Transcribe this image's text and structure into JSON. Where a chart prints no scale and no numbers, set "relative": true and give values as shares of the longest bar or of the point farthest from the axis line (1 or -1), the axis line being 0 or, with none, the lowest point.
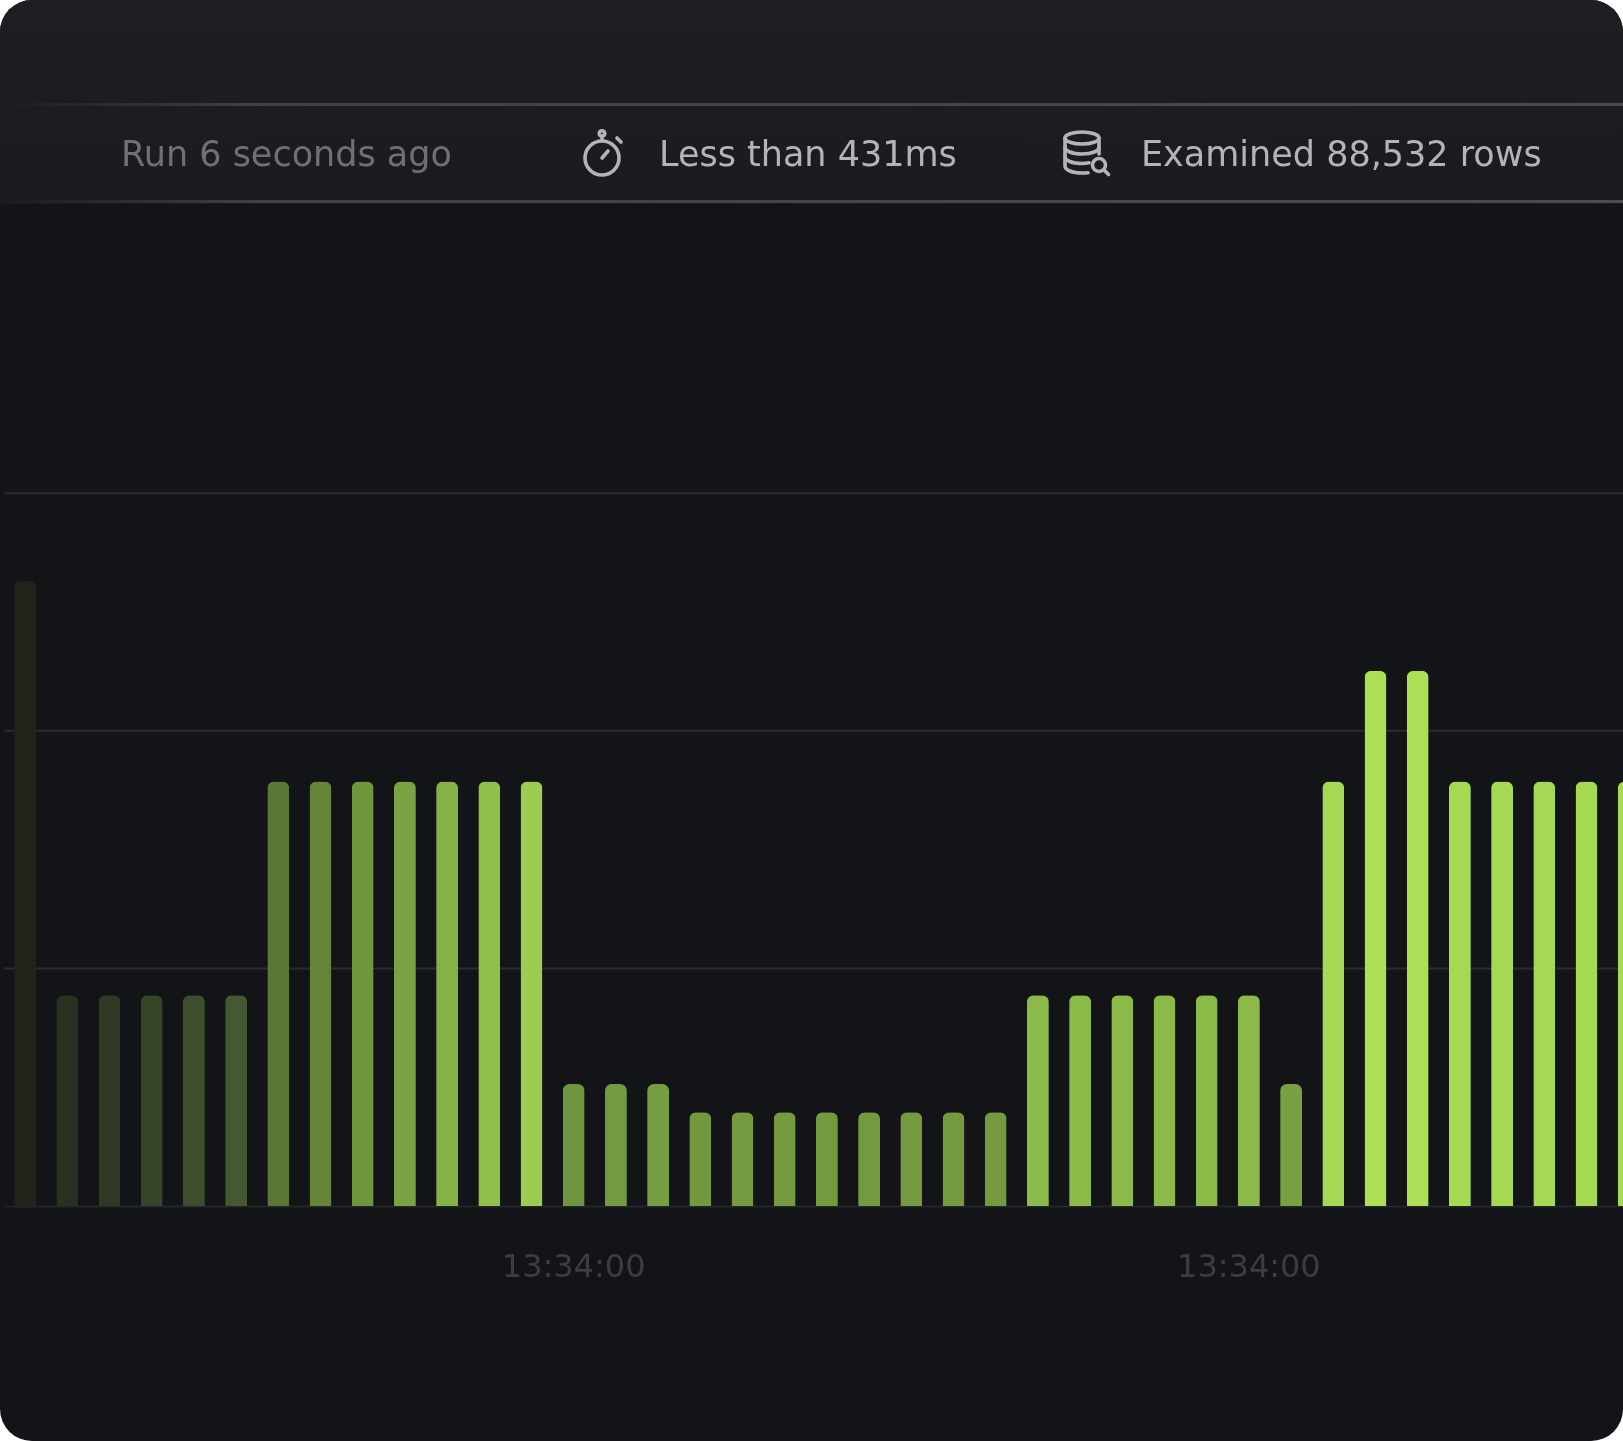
{
  "chart_data": {
    "type": "bar",
    "relative": true,
    "categories": [
      null,
      null,
      null,
      null,
      null,
      null,
      null,
      null,
      null,
      null,
      null,
      null,
      null,
      "13:34:00",
      null,
      null,
      null,
      null,
      null,
      null,
      null,
      null,
      null,
      null,
      null,
      null,
      null,
      null,
      null,
      "13:34:00",
      null,
      null,
      null,
      null,
      null,
      null,
      null,
      null,
      null
    ],
    "values": [
      1,
      0.337,
      0.337,
      0.337,
      0.337,
      0.337,
      0.679,
      0.679,
      0.679,
      0.679,
      0.679,
      0.679,
      0.679,
      0.195,
      0.195,
      0.195,
      0.15,
      0.15,
      0.15,
      0.15,
      0.15,
      0.15,
      0.15,
      0.15,
      0.337,
      0.337,
      0.337,
      0.337,
      0.337,
      0.337,
      0.195,
      0.679,
      0.856,
      0.856,
      0.679,
      0.679,
      0.679,
      0.679,
      0.679
    ],
    "colors": [
      "#1f231a",
      "#283020",
      "#2f3a24",
      "#364428",
      "#3c4e2b",
      "#44592f",
      "#5a7734",
      "#648538",
      "#6f953d",
      "#7aa442",
      "#85b246",
      "#90c04a",
      "#9ccd4f",
      "#6f9540",
      "#729a40",
      "#759d41",
      "#73993f",
      "#74993f",
      "#75993f",
      "#75993f",
      "#75993f",
      "#75993f",
      "#75993f",
      "#75993f",
      "#8cba48",
      "#8cba48",
      "#8cba48",
      "#8cba48",
      "#8cba48",
      "#8cba48",
      "#79a141",
      "#a5d853",
      "#acdf56",
      "#acdf56",
      "#a5d853",
      "#a5d853",
      "#a5d853",
      "#a5d853",
      "#a5d853"
    ],
    "ref_lines": [
      {
        "axis": "y",
        "value": 0.38,
        "color": "#2a2c30"
      },
      {
        "axis": "y",
        "value": 0.76,
        "color": "#2a2c30"
      },
      {
        "axis": "y",
        "value": 1.14,
        "color": "#2a2c30"
      }
    ],
    "annotations": [
      "Run 6 seconds ago",
      "Less than 431ms",
      "Examined 88,532 rows"
    ]
  }
}
